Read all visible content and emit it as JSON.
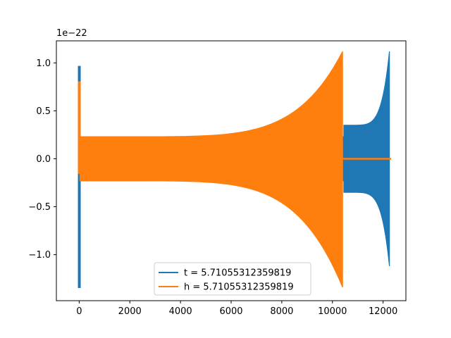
{
  "chart_data": {
    "type": "line",
    "title": "",
    "xlabel": "",
    "ylabel": "",
    "offset_label": "1e−22",
    "xlim": [
      -900,
      12900
    ],
    "ylim": [
      -1.48,
      1.23
    ],
    "x_ticks": [
      0,
      2000,
      4000,
      6000,
      8000,
      10000,
      12000
    ],
    "x_tick_labels": [
      "0",
      "2000",
      "4000",
      "6000",
      "8000",
      "10000",
      "12000"
    ],
    "y_ticks": [
      1.0,
      0.5,
      0.0,
      -0.5,
      -1.0
    ],
    "y_tick_labels": [
      "1.0",
      "0.5",
      "0.0",
      "−0.5",
      "−1.0"
    ],
    "grid": false,
    "legend_position": "lower center",
    "series": [
      {
        "name": "t = 5.71055312359819",
        "color": "#1f77b4",
        "style": "dense oscillation",
        "segments": [
          {
            "x_start": -20,
            "x_end": 30,
            "upper": 0.96,
            "lower": -1.34
          },
          {
            "x_start": 30,
            "x_end": 10450,
            "upper": 0.23,
            "lower": -0.23
          },
          {
            "x_start": 10450,
            "x_end": 12250,
            "upper_start": 0.35,
            "upper_end": 1.12,
            "lower_start": -0.35,
            "lower_end": -1.12
          }
        ]
      },
      {
        "name": "h = 5.71055312359819",
        "color": "#ff7f0e",
        "style": "dense oscillation",
        "segments": [
          {
            "x_start": -20,
            "x_end": 30,
            "upper": 0.8,
            "lower": -0.15
          },
          {
            "x_start": 30,
            "x_end": 10400,
            "upper_start": 0.23,
            "upper_end": 1.12,
            "lower_start": -0.23,
            "lower_end": -1.34
          },
          {
            "x_start": 10400,
            "x_end": 12300,
            "upper": 0.005,
            "lower": -0.005
          }
        ]
      }
    ]
  }
}
